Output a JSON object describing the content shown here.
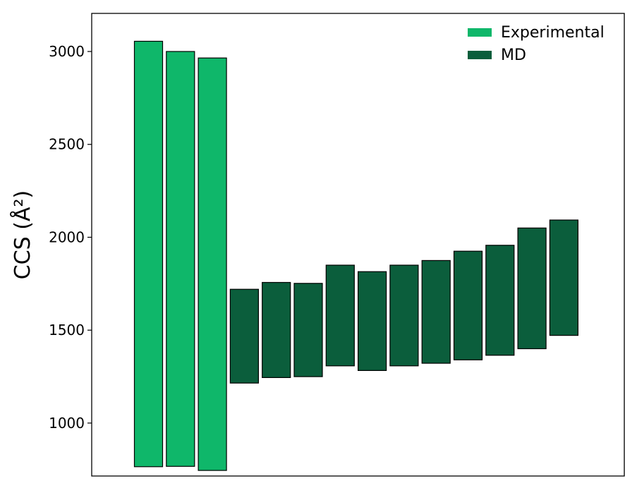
{
  "chart_data": {
    "type": "bar",
    "title": "",
    "xlabel": "",
    "ylabel": "CCS (Å²)",
    "ylim": [
      715,
      3205
    ],
    "yticks": [
      1000,
      1500,
      2000,
      2500,
      3000
    ],
    "grid": false,
    "legend_position": "top-right",
    "colors": {
      "Experimental": "#0fb76a",
      "MD": "#0b5e3c",
      "edge": "#000000"
    },
    "series": [
      {
        "name": "Experimental",
        "bars": [
          {
            "bottom": 765,
            "top": 3055
          },
          {
            "bottom": 767,
            "top": 3000
          },
          {
            "bottom": 745,
            "top": 2965
          }
        ]
      },
      {
        "name": "MD",
        "bars": [
          {
            "bottom": 1215,
            "top": 1720
          },
          {
            "bottom": 1245,
            "top": 1757
          },
          {
            "bottom": 1250,
            "top": 1752
          },
          {
            "bottom": 1308,
            "top": 1850
          },
          {
            "bottom": 1283,
            "top": 1815
          },
          {
            "bottom": 1308,
            "top": 1850
          },
          {
            "bottom": 1322,
            "top": 1875
          },
          {
            "bottom": 1340,
            "top": 1925
          },
          {
            "bottom": 1365,
            "top": 1957
          },
          {
            "bottom": 1400,
            "top": 2050
          },
          {
            "bottom": 1472,
            "top": 2093
          }
        ]
      }
    ]
  }
}
